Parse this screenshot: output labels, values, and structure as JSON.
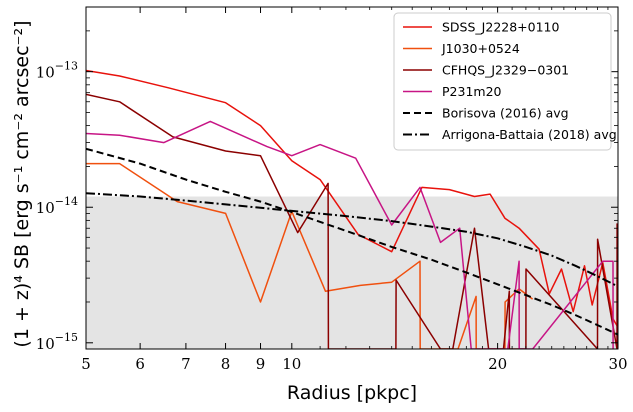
{
  "chart_data": {
    "type": "line",
    "xscale": "log",
    "yscale": "log",
    "xlim": [
      5,
      30
    ],
    "ylim": [
      9e-16,
      3e-13
    ],
    "xlabel": "Radius [pkpc]",
    "ylabel": "(1 + z)⁴ SB [erg s⁻¹ cm⁻² arcsec⁻²]",
    "xticks": [
      {
        "value": 5,
        "label": "5"
      },
      {
        "value": 6,
        "label": "6"
      },
      {
        "value": 7,
        "label": "7"
      },
      {
        "value": 8,
        "label": "8"
      },
      {
        "value": 9,
        "label": "9"
      },
      {
        "value": 10,
        "label": "10"
      },
      {
        "value": 20,
        "label": "20"
      },
      {
        "value": 30,
        "label": "30"
      }
    ],
    "yticks": [
      {
        "value": 1e-15,
        "base": "10",
        "exp": "−15"
      },
      {
        "value": 1e-14,
        "base": "10",
        "exp": "−14"
      },
      {
        "value": 1e-13,
        "base": "10",
        "exp": "−13"
      }
    ],
    "shaded_region": {
      "y0": 9e-16,
      "y1": 1.2e-14,
      "color": "#e4e4e4"
    },
    "legend_position": "top-right",
    "series": [
      {
        "name": "SDSS_J2228+0110",
        "color": "#e8120c",
        "dash": "solid",
        "x": [
          5.0,
          5.6,
          6.6,
          8.0,
          9.0,
          10.0,
          11.0,
          12.5,
          14.0,
          15.5,
          17.0,
          18.5,
          19.5,
          20.5,
          21.5,
          23.0,
          23.8,
          24.8,
          25.8,
          26.8,
          27.5,
          28.5,
          29.5,
          30.0
        ],
        "y": [
          1.02e-13,
          9.3e-14,
          7.6e-14,
          5.9e-14,
          4e-14,
          2.2e-14,
          1.6e-14,
          6.3e-15,
          4.7e-15,
          1.4e-14,
          1.35e-14,
          1.2e-14,
          1.25e-14,
          8.3e-15,
          7e-15,
          4.9e-15,
          2.3e-15,
          3.5e-15,
          1.7e-15,
          3.7e-15,
          1.9e-15,
          3.9e-15,
          1.5e-15,
          1.3e-15
        ]
      },
      {
        "name": "J1030+0524",
        "color": "#f0500f",
        "dash": "solid",
        "x": [
          5.0,
          5.6,
          6.8,
          8.0,
          9.0,
          10.0,
          11.2,
          12.6,
          14.0,
          15.4,
          15.41,
          17.5,
          18.6,
          18.61,
          20.5,
          20.51,
          21.5,
          22.5
        ],
        "y": [
          2.1e-14,
          2.1e-14,
          1.1e-14,
          9e-15,
          2e-15,
          9.3e-15,
          2.4e-15,
          2.65e-15,
          2.8e-15,
          4e-15,
          9e-16,
          9e-16,
          2.2e-15,
          9e-16,
          9e-16,
          2e-15,
          2.5e-15,
          2.1e-15
        ]
      },
      {
        "name": "CFHQS_J2329−0301",
        "color": "#8b0000",
        "dash": "solid",
        "x": [
          5.0,
          5.6,
          6.7,
          8.0,
          9.0,
          10.2,
          11.3,
          11.31,
          14.2,
          14.21,
          16.5,
          17.2,
          18.5,
          19.4,
          19.41,
          20.4,
          20.8,
          20.81,
          22.0,
          22.01,
          28.0,
          28.01,
          29.9,
          29.91
        ],
        "y": [
          6.8e-14,
          6e-14,
          3.3e-14,
          2.6e-14,
          2.4e-14,
          6.5e-15,
          1.5e-14,
          9e-16,
          9e-16,
          2.9e-15,
          9e-16,
          9e-16,
          7e-15,
          9e-16,
          9e-16,
          9e-16,
          2.4e-15,
          9e-16,
          9e-16,
          3.5e-15,
          9e-16,
          5.8e-15,
          9e-16,
          7.6e-15
        ]
      },
      {
        "name": "P231m20",
        "color": "#c71585",
        "dash": "solid",
        "x": [
          5.0,
          5.6,
          6.5,
          7.6,
          9.2,
          10.0,
          11.0,
          12.4,
          14.0,
          15.4,
          16.5,
          17.6,
          18.3,
          18.31,
          20.7,
          21.5,
          21.51,
          22.5,
          22.51,
          28.5,
          29.5,
          29.51
        ],
        "y": [
          3.5e-14,
          3.4e-14,
          3e-14,
          4.3e-14,
          2.8e-14,
          2.4e-14,
          2.9e-14,
          2.3e-14,
          7.4e-15,
          1.4e-14,
          5.5e-15,
          7e-15,
          9e-16,
          9e-16,
          9e-16,
          4e-15,
          9e-16,
          9e-16,
          9e-16,
          4e-15,
          4e-15,
          9e-16
        ]
      },
      {
        "name": "Borisova (2016) avg",
        "color": "#000000",
        "dash": "dashed",
        "x": [
          5,
          6,
          7,
          8,
          9,
          10,
          12,
          14,
          16,
          18,
          20,
          22,
          24,
          26,
          28,
          30
        ],
        "y": [
          2.7e-14,
          2.1e-14,
          1.6e-14,
          1.3e-14,
          1.1e-14,
          9.2e-15,
          6.7e-15,
          5.1e-15,
          4.1e-15,
          3.3e-15,
          2.7e-15,
          2.25e-15,
          1.9e-15,
          1.6e-15,
          1.35e-15,
          1.15e-15
        ]
      },
      {
        "name": "Arrigona-Battaia (2018) avg",
        "color": "#000000",
        "dash": "dashdot",
        "x": [
          5,
          6,
          7,
          8,
          9,
          10,
          12,
          14,
          16,
          18,
          20,
          22,
          24,
          26,
          28,
          30
        ],
        "y": [
          1.27e-14,
          1.2e-14,
          1.12e-14,
          1.05e-14,
          9.9e-15,
          9.4e-15,
          8.6e-15,
          7.9e-15,
          7.2e-15,
          6.6e-15,
          5.9e-15,
          5.1e-15,
          4.4e-15,
          3.7e-15,
          3.1e-15,
          2.6e-15
        ]
      }
    ]
  }
}
